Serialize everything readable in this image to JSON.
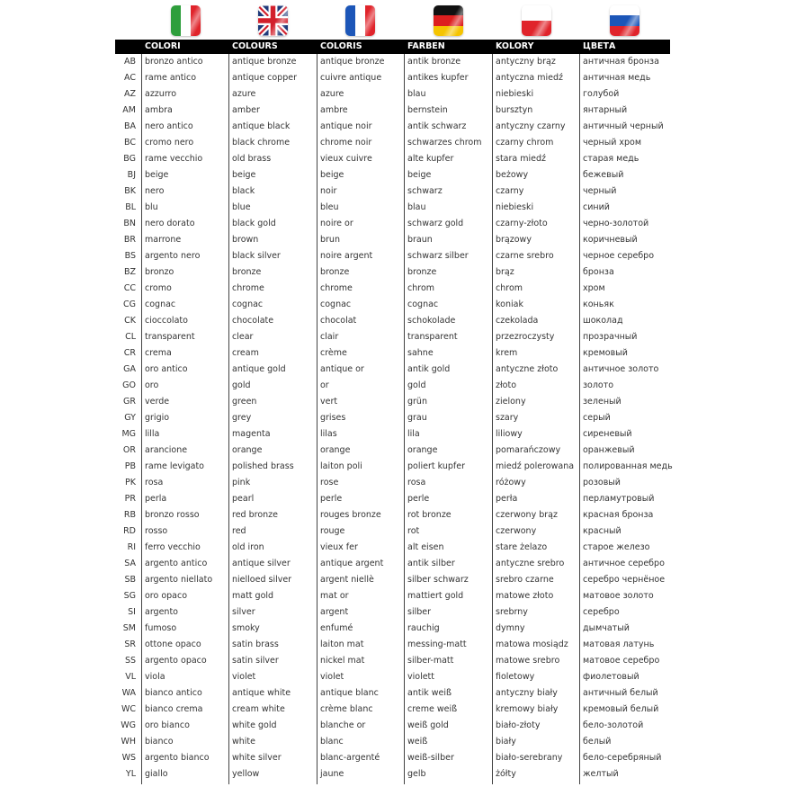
{
  "flags": [
    {
      "name": "italy-flag",
      "colors": [
        "#2e9e3c",
        "#ffffff",
        "#e0242b"
      ]
    },
    {
      "name": "uk-flag",
      "colors": [
        "#1f3a7a",
        "#ffffff",
        "#d21f2b"
      ]
    },
    {
      "name": "france-flag",
      "colors": [
        "#1c56b8",
        "#ffffff",
        "#e0242b"
      ]
    },
    {
      "name": "germany-flag",
      "colors": [
        "#111111",
        "#dd1f1f",
        "#f5c400"
      ]
    },
    {
      "name": "poland-flag",
      "colors": [
        "#ffffff",
        "#e0242b"
      ]
    },
    {
      "name": "russia-flag",
      "colors": [
        "#ffffff",
        "#1c56b8",
        "#e0242b"
      ]
    }
  ],
  "headers": [
    "COLORI",
    "COLOURS",
    "COLORIS",
    "FARBEN",
    "KOLORY",
    "ЦВЕТА"
  ],
  "rows": [
    [
      "AB",
      "bronzo antico",
      "antique bronze",
      "antique bronze",
      "antik bronze",
      "antyczny brąz",
      "античная бронза"
    ],
    [
      "AC",
      "rame antico",
      "antique copper",
      "cuivre antique",
      "antikes kupfer",
      "antyczna miedź",
      "античная медь"
    ],
    [
      "AZ",
      "azzurro",
      "azure",
      "azure",
      "blau",
      "niebieski",
      "голубой"
    ],
    [
      "AM",
      "ambra",
      "amber",
      "ambre",
      "bernstein",
      "bursztyn",
      "янтарный"
    ],
    [
      "BA",
      "nero antico",
      "antique black",
      "antique noir",
      "antik schwarz",
      "antyczny czarny",
      "античный черный"
    ],
    [
      "BC",
      "cromo nero",
      "black chrome",
      "chrome noir",
      "schwarzes chrom",
      "czarny chrom",
      "черный хром"
    ],
    [
      "BG",
      "rame vecchio",
      "old brass",
      "vieux cuivre",
      "alte kupfer",
      "stara miedź",
      "старая медь"
    ],
    [
      "BJ",
      "beige",
      "beige",
      "beige",
      "beige",
      "beżowy",
      "бежевый"
    ],
    [
      "BK",
      "nero",
      "black",
      "noir",
      "schwarz",
      "czarny",
      "черный"
    ],
    [
      "BL",
      "blu",
      "blue",
      "bleu",
      "blau",
      "niebieski",
      "синий"
    ],
    [
      "BN",
      "nero dorato",
      "black gold",
      "noire or",
      "schwarz gold",
      "czarny-złoto",
      "черно-золотой"
    ],
    [
      "BR",
      "marrone",
      "brown",
      "brun",
      "braun",
      "brązowy",
      "коричневый"
    ],
    [
      "BS",
      "argento nero",
      "black silver",
      "noire argent",
      "schwarz silber",
      "czarne srebro",
      "черное серебро"
    ],
    [
      "BZ",
      "bronzo",
      "bronze",
      "bronze",
      "bronze",
      "brąz",
      "бронза"
    ],
    [
      "CC",
      "cromo",
      "chrome",
      "chrome",
      "chrom",
      "chrom",
      "хром"
    ],
    [
      "CG",
      "cognac",
      "cognac",
      "cognac",
      "cognac",
      "koniak",
      "коньяк"
    ],
    [
      "CK",
      "cioccolato",
      "chocolate",
      "chocolat",
      "schokolade",
      "czekolada",
      "шоколад"
    ],
    [
      "CL",
      "transparent",
      "clear",
      "clair",
      "transparent",
      "przezroczysty",
      "прозрачный"
    ],
    [
      "CR",
      "crema",
      "cream",
      "crème",
      "sahne",
      "krem",
      "кремовый"
    ],
    [
      "GA",
      "oro antico",
      "antique gold",
      "antique or",
      "antik gold",
      "antyczne złoto",
      "античное золото"
    ],
    [
      "GO",
      "oro",
      "gold",
      "or",
      "gold",
      "złoto",
      "золото"
    ],
    [
      "GR",
      "verde",
      "green",
      "vert",
      "grün",
      "zielony",
      "зеленый"
    ],
    [
      "GY",
      "grigio",
      "grey",
      "grises",
      "grau",
      "szary",
      "серый"
    ],
    [
      "MG",
      "lilla",
      "magenta",
      "lilas",
      "lila",
      "liliowy",
      "сиреневый"
    ],
    [
      "OR",
      "arancione",
      "orange",
      "orange",
      "orange",
      "pomarańczowy",
      "оранжевый"
    ],
    [
      "PB",
      "rame levigato",
      "polished brass",
      "laiton poli",
      "poliert kupfer",
      "miedź polerowana",
      "полированная медь"
    ],
    [
      "PK",
      "rosa",
      "pink",
      "rose",
      "rosa",
      "różowy",
      "розовый"
    ],
    [
      "PR",
      "perla",
      "pearl",
      "perle",
      "perle",
      "perła",
      "перламутровый"
    ],
    [
      "RB",
      "bronzo rosso",
      "red bronze",
      "rouges bronze",
      "rot bronze",
      "czerwony brąz",
      "красная бронза"
    ],
    [
      "RD",
      "rosso",
      "red",
      "rouge",
      "rot",
      "czerwony",
      "красный"
    ],
    [
      "RI",
      "ferro vecchio",
      "old iron",
      "vieux fer",
      "alt eisen",
      "stare żelazo",
      "старое железо"
    ],
    [
      "SA",
      "argento antico",
      "antique silver",
      "antique argent",
      "antik silber",
      "antyczne srebro",
      "античное серебро"
    ],
    [
      "SB",
      "argento niellato",
      "nielloed silver",
      "argent niellè",
      "silber schwarz",
      "srebro czarne",
      "серебро чернёное"
    ],
    [
      "SG",
      "oro opaco",
      "matt gold",
      "mat or",
      "mattiert gold",
      "matowe złoto",
      "матовое золото"
    ],
    [
      "SI",
      "argento",
      "silver",
      "argent",
      "silber",
      "srebrny",
      "серебро"
    ],
    [
      "SM",
      "fumoso",
      "smoky",
      "enfumé",
      "rauchig",
      "dymny",
      "дымчатый"
    ],
    [
      "SR",
      "ottone opaco",
      "satin brass",
      "laiton mat",
      "messing-matt",
      "matowa mosiądz",
      "матовая латунь"
    ],
    [
      "SS",
      "argento opaco",
      "satin silver",
      "nickel mat",
      "silber-matt",
      "matowe srebro",
      "матовое серебро"
    ],
    [
      "VL",
      "viola",
      "violet",
      "violet",
      "violett",
      "fioletowy",
      "фиолетовый"
    ],
    [
      "WA",
      "bianco antico",
      "antique white",
      "antique blanc",
      "antik weiß",
      "antyczny biały",
      "античный белый"
    ],
    [
      "WC",
      "bianco crema",
      "cream white",
      "crème blanc",
      "creme weiß",
      "kremowy biały",
      "кремовый белый"
    ],
    [
      "WG",
      "oro bianco",
      "white gold",
      "blanche or",
      "weiß gold",
      "biało-złoty",
      "бело-золотой"
    ],
    [
      "WH",
      "bianco",
      "white",
      "blanc",
      "weiß",
      "biały",
      "белый"
    ],
    [
      "WS",
      "argento bianco",
      "white silver",
      "blanc-argenté",
      "weiß-silber",
      "biało-serebrany",
      "бело-серебряный"
    ],
    [
      "YL",
      "giallo",
      "yellow",
      "jaune",
      "gelb",
      "żółty",
      "желтый"
    ]
  ]
}
